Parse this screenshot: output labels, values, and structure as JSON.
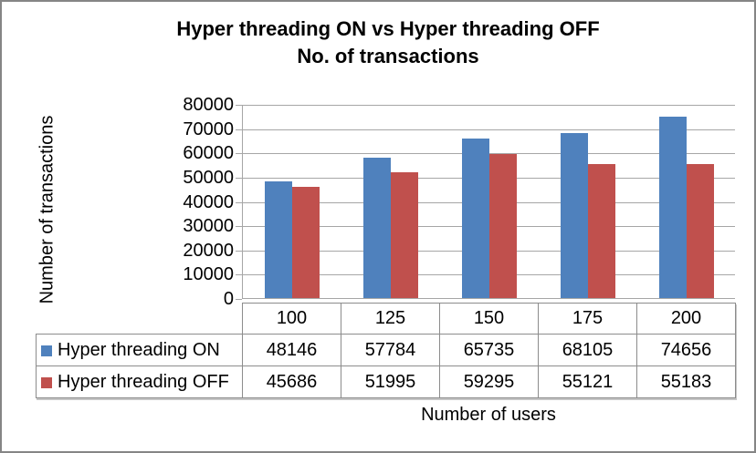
{
  "title": {
    "line1": "Hyper threading ON vs Hyper threading OFF",
    "line2": "No. of transactions"
  },
  "chart_data": {
    "type": "bar",
    "title": "Hyper threading ON vs Hyper threading OFF - No. of transactions",
    "categories": [
      "100",
      "125",
      "150",
      "175",
      "200"
    ],
    "series": [
      {
        "name": "Hyper threading ON",
        "color": "#4F81BD",
        "values": [
          48146,
          57784,
          65735,
          68105,
          74656
        ]
      },
      {
        "name": "Hyper threading OFF",
        "color": "#C0504D",
        "values": [
          45686,
          51995,
          59295,
          55121,
          55183
        ]
      }
    ],
    "xlabel": "Number of users",
    "ylabel": "Number of transactions",
    "ylim": [
      0,
      80000
    ],
    "yticks": [
      0,
      10000,
      20000,
      30000,
      40000,
      50000,
      60000,
      70000,
      80000
    ],
    "grid": "horizontal",
    "legend_position": "data-table-left"
  },
  "colors": {
    "bar_on": "#4F81BD",
    "bar_off": "#C0504D",
    "gridline": "#A6A6A6",
    "table_border": "#8C8C8C",
    "frame_border": "#858585",
    "text": "#000000",
    "background": "#FFFFFF"
  }
}
